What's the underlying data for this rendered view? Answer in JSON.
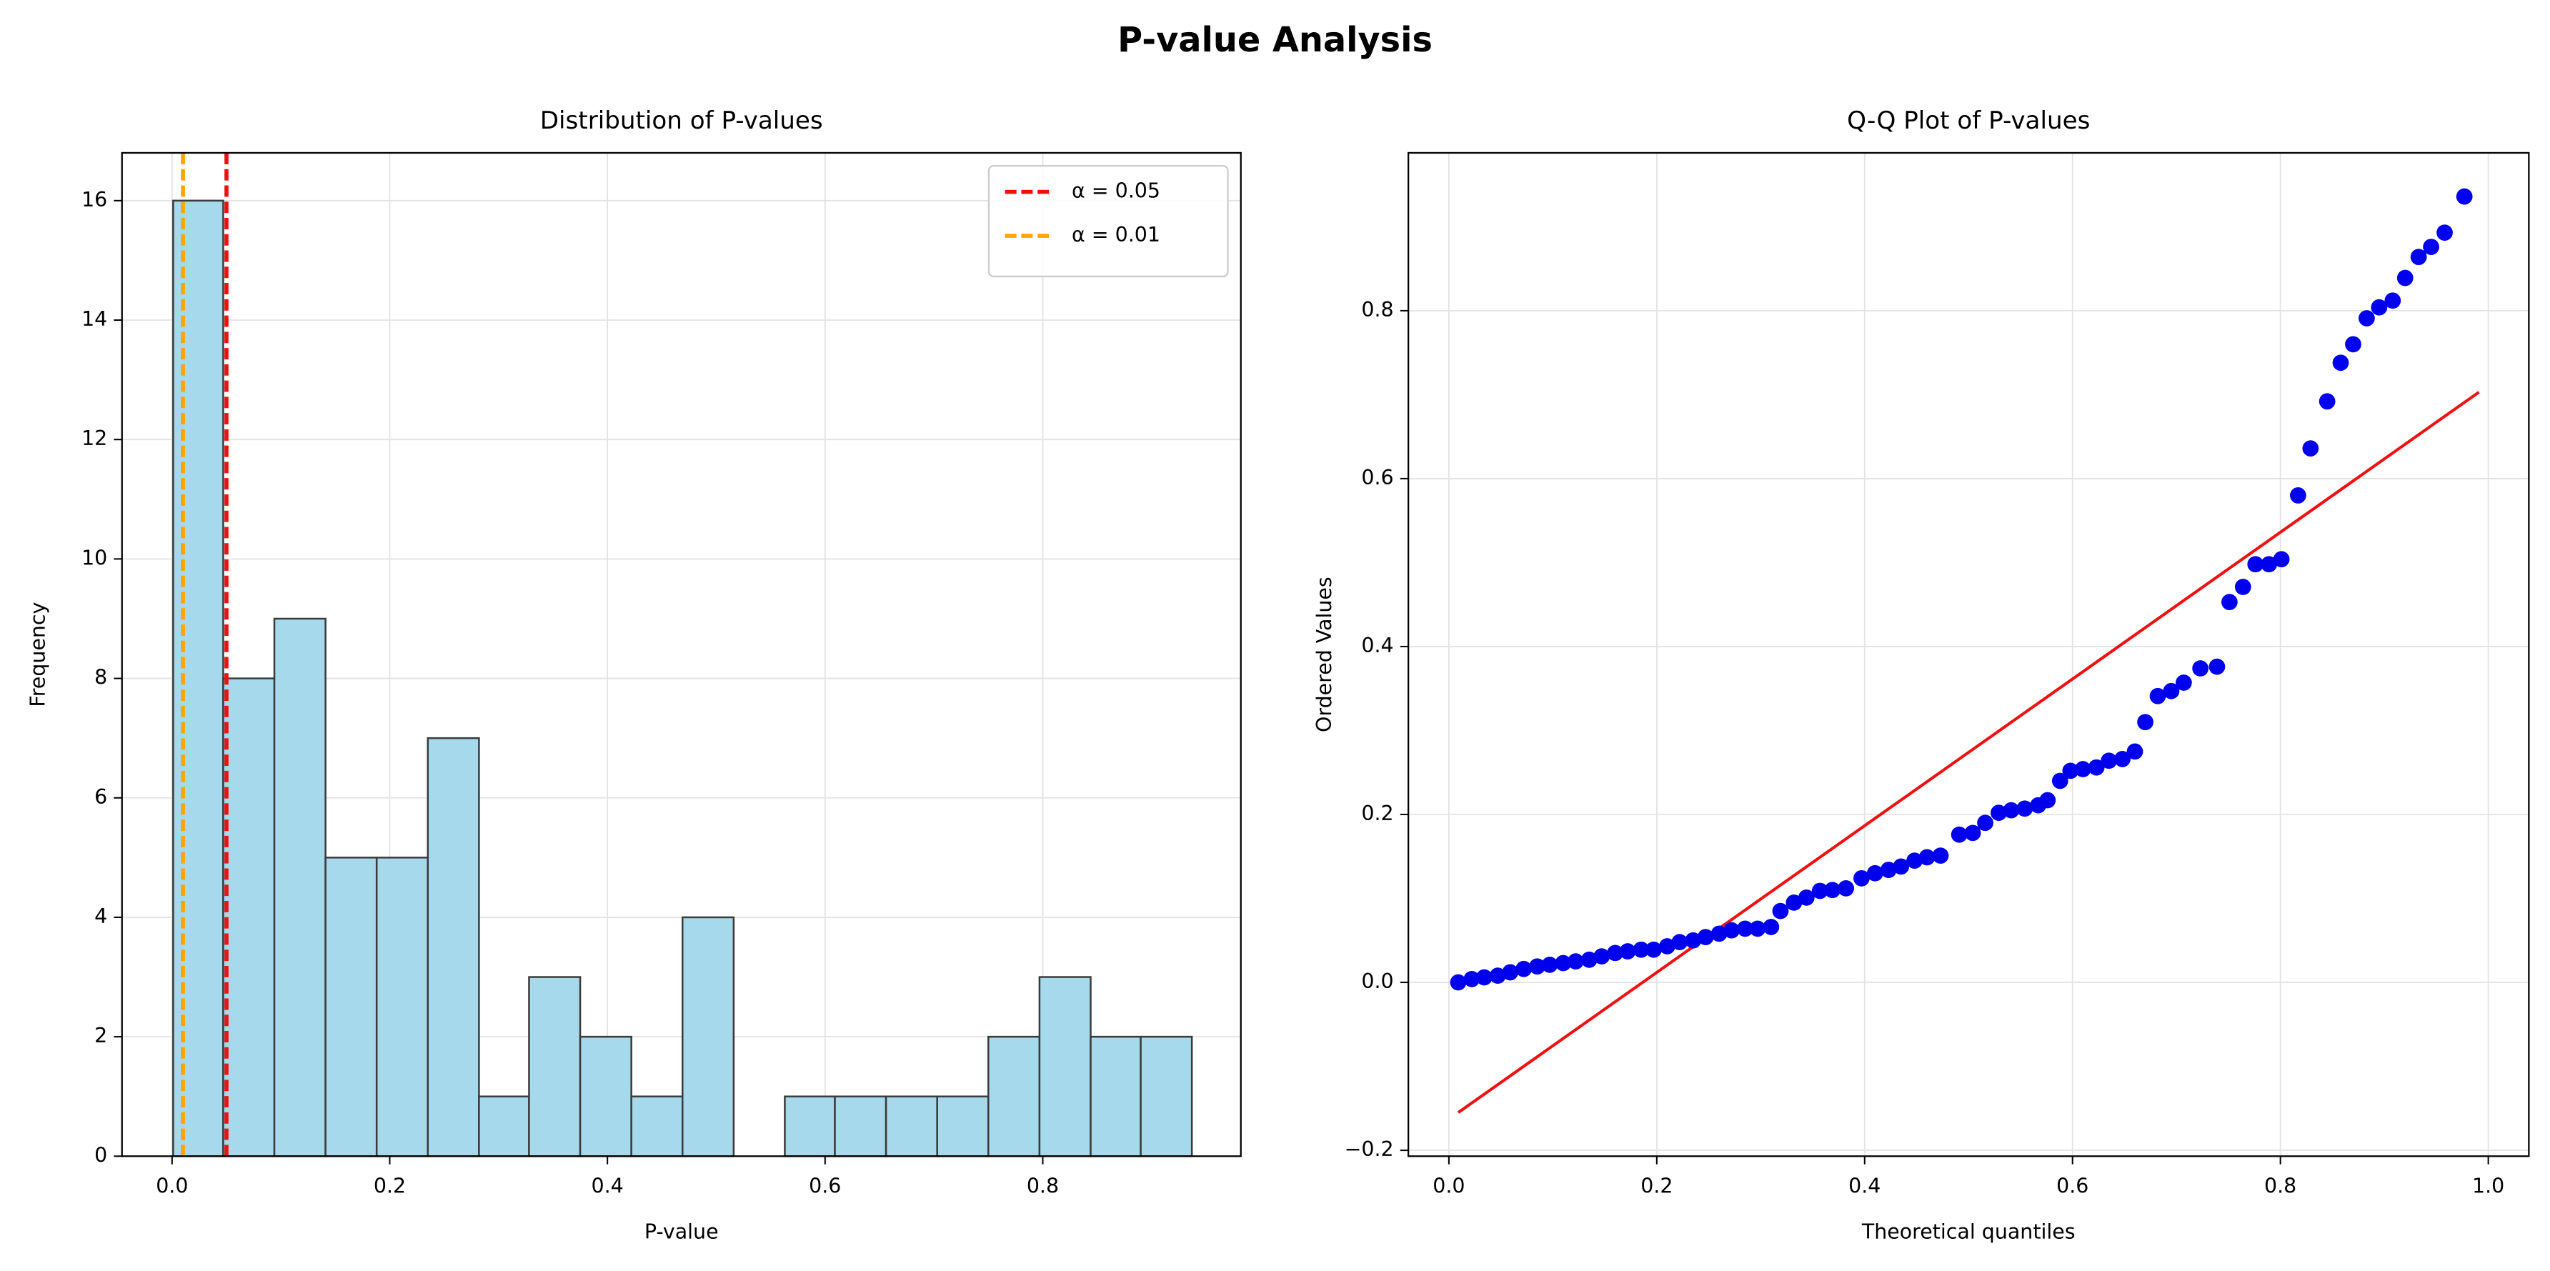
{
  "title": "P-value Analysis",
  "chart_data": [
    {
      "type": "histogram",
      "title": "Distribution of P-values",
      "xlabel": "P-value",
      "ylabel": "Frequency",
      "bins": [
        0.001,
        0.047,
        0.094,
        0.141,
        0.188,
        0.235,
        0.282,
        0.328,
        0.375,
        0.422,
        0.469,
        0.516,
        0.563,
        0.609,
        0.656,
        0.703,
        0.75,
        0.797,
        0.844,
        0.89,
        0.937
      ],
      "counts": [
        16,
        8,
        9,
        5,
        5,
        7,
        1,
        3,
        2,
        1,
        4,
        0,
        1,
        1,
        1,
        1,
        2,
        3,
        2,
        2
      ],
      "color": "#a6d9ec",
      "edgecolor": "#3a3a3a",
      "xlim": [
        -0.046,
        0.982
      ],
      "ylim": [
        0,
        16.8
      ],
      "xticks": [
        {
          "value": 0,
          "label": "0.0"
        },
        0.2,
        0.4,
        0.6,
        0.8
      ],
      "yticks": [
        0,
        2,
        4,
        6,
        8,
        10,
        12,
        14,
        16
      ],
      "grid": true,
      "legend": "upper right",
      "lines": [
        {
          "name": "α = 0.05",
          "value": 0.05,
          "color": "#ee1111"
        },
        {
          "name": "α = 0.01",
          "value": 0.01,
          "color": "#ffa500"
        }
      ]
    },
    {
      "type": "scatter",
      "title": "Q-Q Plot of P-values",
      "xlabel": "Theoretical quantiles",
      "ylabel": "Ordered Values",
      "series": [
        {
          "color": "#0000ee",
          "x": [
            0.009,
            0.022,
            0.034,
            0.047,
            0.059,
            0.072,
            0.085,
            0.097,
            0.11,
            0.122,
            0.135,
            0.147,
            0.16,
            0.172,
            0.185,
            0.197,
            0.21,
            0.222,
            0.235,
            0.247,
            0.26,
            0.272,
            0.285,
            0.297,
            0.31,
            0.319,
            0.332,
            0.344,
            0.357,
            0.369,
            0.382,
            0.397,
            0.41,
            0.423,
            0.435,
            0.448,
            0.46,
            0.473,
            0.491,
            0.504,
            0.516,
            0.529,
            0.541,
            0.554,
            0.567,
            0.576,
            0.588,
            0.598,
            0.61,
            0.623,
            0.635,
            0.648,
            0.66,
            0.67,
            0.682,
            0.695,
            0.707,
            0.723,
            0.739,
            0.751,
            0.764,
            0.776,
            0.789,
            0.801,
            0.817,
            0.829,
            0.845,
            0.858,
            0.87,
            0.883,
            0.895,
            0.908,
            0.92,
            0.933,
            0.945,
            0.958,
            0.977
          ],
          "values": [
            0,
            0.004,
            0.006,
            0.008,
            0.012,
            0.016,
            0.019,
            0.021,
            0.023,
            0.025,
            0.027,
            0.031,
            0.035,
            0.037,
            0.039,
            0.039,
            0.043,
            0.048,
            0.05,
            0.054,
            0.058,
            0.062,
            0.064,
            0.064,
            0.066,
            0.085,
            0.095,
            0.101,
            0.109,
            0.11,
            0.112,
            0.124,
            0.13,
            0.134,
            0.138,
            0.145,
            0.149,
            0.151,
            0.176,
            0.178,
            0.19,
            0.202,
            0.205,
            0.207,
            0.211,
            0.217,
            0.24,
            0.252,
            0.254,
            0.256,
            0.264,
            0.266,
            0.275,
            0.31,
            0.341,
            0.347,
            0.357,
            0.374,
            0.376,
            0.453,
            0.471,
            0.498,
            0.498,
            0.504,
            0.58,
            0.636,
            0.692,
            0.738,
            0.76,
            0.791,
            0.804,
            0.812,
            0.839,
            0.864,
            0.876,
            0.893,
            0.936
          ]
        }
      ],
      "fit_line": {
        "color": "#ee1111",
        "x": [
          0.009,
          0.991
        ],
        "values": [
          -0.155,
          0.703
        ]
      },
      "xlim": [
        -0.039,
        1.039
      ],
      "ylim": [
        -0.207,
        0.988
      ],
      "xticks": [
        {
          "value": 0,
          "label": "0.0"
        },
        0.2,
        0.4,
        0.6,
        0.8,
        {
          "value": 1,
          "label": "1.0"
        }
      ],
      "yticks": [
        {
          "value": -0.2,
          "label": "−0.2"
        },
        {
          "value": 0,
          "label": "0.0"
        },
        0.2,
        0.4,
        0.6,
        0.8
      ],
      "grid": true
    }
  ]
}
